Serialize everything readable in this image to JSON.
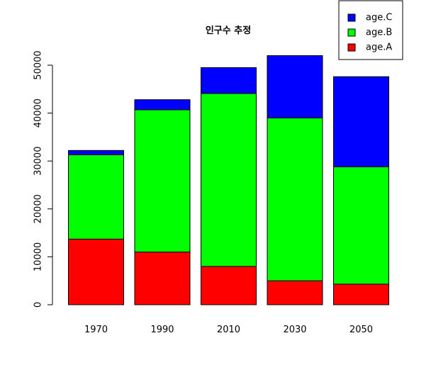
{
  "chart_data": {
    "type": "bar",
    "stacked": true,
    "title": "인구수 추정",
    "xlabel": "",
    "ylabel": "",
    "categories": [
      "1970",
      "1990",
      "2010",
      "2030",
      "2050"
    ],
    "series": [
      {
        "name": "age.A",
        "color": "#ff0000",
        "values": [
          13700,
          11000,
          8000,
          5000,
          4300
        ]
      },
      {
        "name": "age.B",
        "color": "#00ff00",
        "values": [
          17600,
          29700,
          36100,
          34000,
          24500
        ]
      },
      {
        "name": "age.C",
        "color": "#0000ff",
        "values": [
          900,
          2100,
          5400,
          13000,
          18800
        ]
      }
    ],
    "ylim": [
      0,
      52000
    ],
    "yticks": [
      "0",
      "10000",
      "20000",
      "30000",
      "40000",
      "50000"
    ],
    "legend": {
      "position": "top-right",
      "order": [
        "age.C",
        "age.B",
        "age.A"
      ]
    },
    "grid": false
  }
}
